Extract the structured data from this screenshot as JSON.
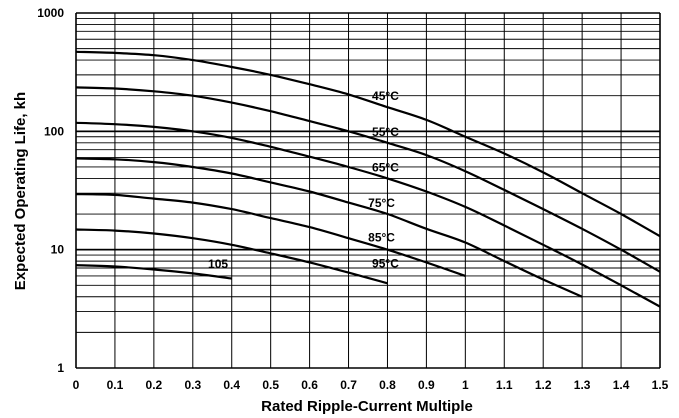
{
  "chart_data": {
    "type": "line",
    "title": "",
    "xlabel": "Rated Ripple-Current Multiple",
    "ylabel": "Expected Operating Life, kh",
    "xlim": [
      0,
      1.5
    ],
    "ylim": [
      1,
      1000
    ],
    "y_scale": "log",
    "grid": true,
    "x_ticks": [
      "0",
      "0.1",
      "0.2",
      "0.3",
      "0.4",
      "0.5",
      "0.6",
      "0.7",
      "0.8",
      "0.9",
      "1",
      "1.1",
      "1.2",
      "1.3",
      "1.4",
      "1.5"
    ],
    "y_ticks": [
      "1",
      "10",
      "100",
      "1000"
    ],
    "series": [
      {
        "name": "45°C",
        "x": [
          0,
          0.1,
          0.2,
          0.3,
          0.4,
          0.5,
          0.6,
          0.7,
          0.8,
          0.9,
          1.0,
          1.1,
          1.2,
          1.3,
          1.4,
          1.5
        ],
        "y": [
          470,
          460,
          440,
          400,
          350,
          300,
          250,
          205,
          160,
          125,
          90,
          65,
          45,
          30,
          20,
          13
        ]
      },
      {
        "name": "55°C",
        "x": [
          0,
          0.1,
          0.2,
          0.3,
          0.4,
          0.5,
          0.6,
          0.7,
          0.8,
          0.9,
          1.0,
          1.1,
          1.2,
          1.3,
          1.4,
          1.5
        ],
        "y": [
          235,
          230,
          218,
          200,
          175,
          148,
          122,
          100,
          80,
          63,
          46,
          32,
          22,
          15,
          10,
          6.5
        ]
      },
      {
        "name": "65°C",
        "x": [
          0,
          0.1,
          0.2,
          0.3,
          0.4,
          0.5,
          0.6,
          0.7,
          0.8,
          0.9,
          1.0,
          1.1,
          1.2,
          1.3,
          1.4,
          1.5
        ],
        "y": [
          118,
          115,
          109,
          100,
          88,
          74,
          61,
          50,
          40,
          31,
          23,
          16,
          11,
          7.5,
          5,
          3.3
        ]
      },
      {
        "name": "75°C",
        "x": [
          0,
          0.1,
          0.2,
          0.3,
          0.4,
          0.5,
          0.6,
          0.7,
          0.8,
          0.9,
          1.0,
          1.1,
          1.2,
          1.3
        ],
        "y": [
          59,
          58,
          55,
          50,
          44,
          37,
          31,
          25,
          20,
          15,
          11.5,
          8,
          5.6,
          4
        ]
      },
      {
        "name": "85°C",
        "x": [
          0,
          0.1,
          0.2,
          0.3,
          0.4,
          0.5,
          0.6,
          0.7,
          0.8,
          0.9,
          1.0
        ],
        "y": [
          29.5,
          29,
          27,
          25,
          22,
          18.5,
          15.5,
          12.5,
          10,
          7.8,
          6
        ]
      },
      {
        "name": "95°C",
        "x": [
          0,
          0.1,
          0.2,
          0.3,
          0.4,
          0.5,
          0.6,
          0.7,
          0.8
        ],
        "y": [
          14.8,
          14.5,
          13.7,
          12.5,
          11,
          9.3,
          7.8,
          6.4,
          5.2
        ]
      },
      {
        "name": "105",
        "x": [
          0,
          0.1,
          0.2,
          0.3,
          0.4
        ],
        "y": [
          7.4,
          7.2,
          6.8,
          6.3,
          5.7
        ]
      }
    ],
    "line_color": "#000000"
  }
}
